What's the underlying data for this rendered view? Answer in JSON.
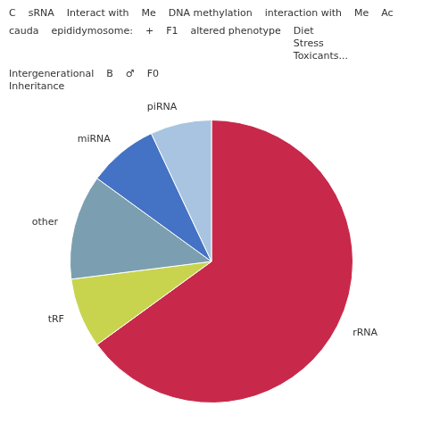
{
  "chart_data": {
    "type": "pie",
    "categories": [
      "rRNA",
      "tRF",
      "other",
      "miRNA",
      "piRNA"
    ],
    "values": [
      65,
      8,
      12,
      8,
      7
    ],
    "colors": [
      "#C8294A",
      "#C8D44E",
      "#7B9FB0",
      "#4472C4",
      "#A8C4E0"
    ],
    "annotations": [
      "C",
      "sRNA",
      "Interact with",
      "Me",
      "DNA methylation",
      "interaction with",
      "Me",
      "Ac",
      "cauda",
      "epididymosome:",
      "+",
      "F1",
      "altered phenotype",
      "Diet\nStress\nToxicants...",
      "Intergenerational\nInheritance",
      "B",
      "♂",
      "F0"
    ]
  }
}
